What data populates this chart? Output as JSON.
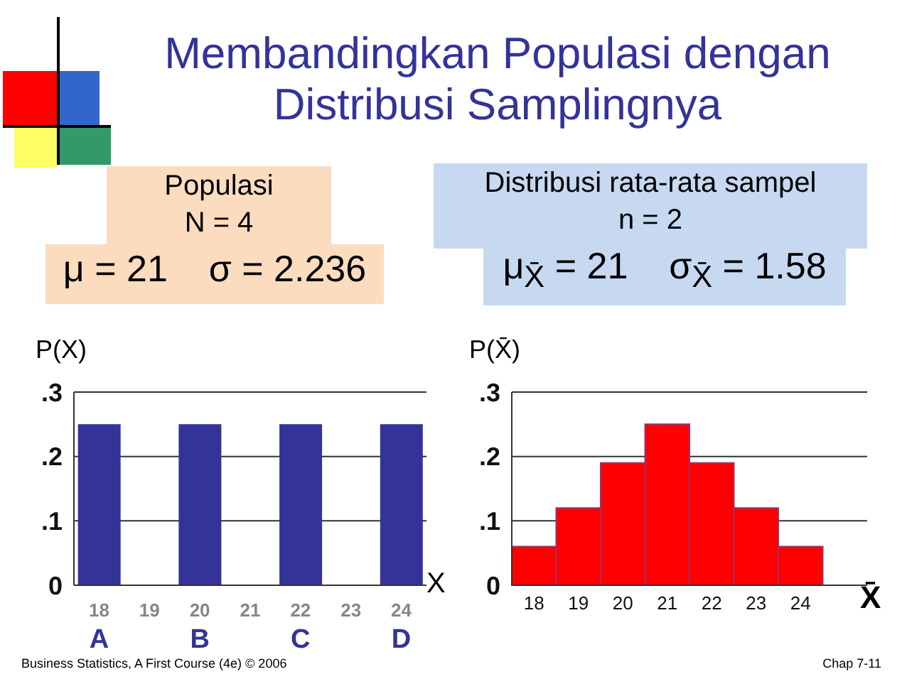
{
  "chart_data": [
    {
      "type": "bar",
      "title": "Membandingkan Populasi dengan Distribusi Samplingnya",
      "ylabel": "P(X)",
      "xlabel": "X",
      "categories": [
        "18",
        "19",
        "20",
        "21",
        "22",
        "23",
        "24"
      ],
      "values": [
        0.25,
        null,
        0.25,
        null,
        0.25,
        null,
        0.25
      ],
      "color": "#333399",
      "ylim": [
        0,
        0.3
      ],
      "yticks": [
        0,
        {
          "value": 0.1,
          "label": ".1"
        },
        {
          "value": 0.2,
          "label": ".2"
        },
        {
          "value": 0.3,
          "label": ".3"
        }
      ],
      "grid": "y",
      "annotations": [
        "Populasi",
        "N = 4",
        "μ = 21    σ = 2.236",
        "Business Statistics, A First Course (4e) © 2006",
        "A",
        "B",
        "C",
        "D"
      ]
    },
    {
      "type": "histogram",
      "title": "Distribusi rata-rata sampel",
      "subtitle": "n = 2",
      "ylabel": "P(X̄)",
      "xlabel": "X̄",
      "bins": [
        17.5,
        18.5,
        19.5,
        20.5,
        21.5,
        22.5,
        23.5,
        24.5
      ],
      "values": [
        0.06,
        0.12,
        0.19,
        0.25,
        0.19,
        0.12,
        0.06
      ],
      "color": "#ff0000",
      "xlim": [
        17.5,
        25.5
      ],
      "xticks": [
        18,
        19,
        20,
        21,
        22,
        23,
        24
      ],
      "ylim": [
        0,
        0.3
      ],
      "yticks": [
        0,
        {
          "value": 0.1,
          "label": ".1"
        },
        {
          "value": 0.2,
          "label": ".2"
        },
        {
          "value": 0.3,
          "label": ".3"
        }
      ],
      "grid": "y",
      "annotations": [
        "μ$_{X̄}$ = 21    σ$_{X̄}$ = 1.58",
        "Chap 7-11"
      ]
    }
  ]
}
